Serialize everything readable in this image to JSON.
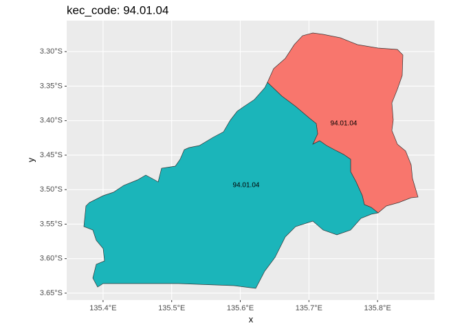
{
  "chart_data": {
    "type": "map",
    "title": "kec_code: 94.01.04",
    "x_label": "x",
    "y_label": "y",
    "xlim": [
      135.347,
      135.883
    ],
    "ylim": [
      -3.66,
      -3.255
    ],
    "xticks": [
      {
        "value": 135.4,
        "label": "135.4°E"
      },
      {
        "value": 135.5,
        "label": "135.5°E"
      },
      {
        "value": 135.6,
        "label": "135.6°E"
      },
      {
        "value": 135.7,
        "label": "135.7°E"
      },
      {
        "value": 135.8,
        "label": "135.8°E"
      }
    ],
    "yticks": [
      {
        "value": -3.3,
        "label": "3.30°S"
      },
      {
        "value": -3.35,
        "label": "3.35°S"
      },
      {
        "value": -3.4,
        "label": "3.40°S"
      },
      {
        "value": -3.45,
        "label": "3.45°S"
      },
      {
        "value": -3.5,
        "label": "3.50°S"
      },
      {
        "value": -3.55,
        "label": "3.55°S"
      },
      {
        "value": -3.6,
        "label": "3.60°S"
      },
      {
        "value": -3.65,
        "label": "3.65°S"
      }
    ],
    "grid": true,
    "regions": [
      {
        "label": "94.01.04",
        "color": "#F8766D"
      },
      {
        "label": "94.01.04",
        "color": "#1BB5BA"
      }
    ]
  }
}
